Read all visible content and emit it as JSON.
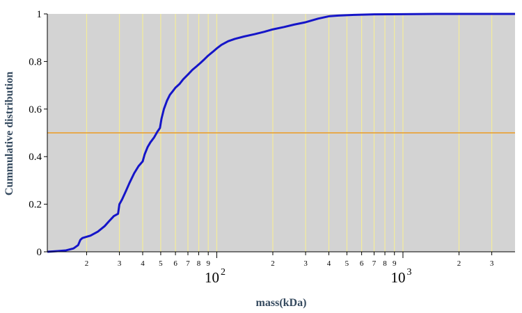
{
  "chart_data": {
    "type": "line",
    "title": "",
    "xlabel": "mass(kDa)",
    "ylabel": "Cummulative distribution",
    "x_scale": "log",
    "xlim": [
      12.3,
      4000
    ],
    "ylim": [
      0,
      1
    ],
    "grid": "vertical lines at log-axis tick positions",
    "colors": {
      "background": "#d3d3d3",
      "line": "#1515c8",
      "reference": "#e8a33a",
      "grid": "#f4ec9a"
    },
    "y_ticks": [
      "0",
      "0.2",
      "0.4",
      "0.6",
      "0.8",
      "1"
    ],
    "x_minor_ticks": [
      {
        "value": 20,
        "label": "2"
      },
      {
        "value": 30,
        "label": "3"
      },
      {
        "value": 40,
        "label": "4"
      },
      {
        "value": 50,
        "label": "5"
      },
      {
        "value": 60,
        "label": "6"
      },
      {
        "value": 70,
        "label": "7"
      },
      {
        "value": 80,
        "label": "8"
      },
      {
        "value": 90,
        "label": "9"
      },
      {
        "value": 200,
        "label": "2"
      },
      {
        "value": 300,
        "label": "3"
      },
      {
        "value": 400,
        "label": "4"
      },
      {
        "value": 500,
        "label": "5"
      },
      {
        "value": 600,
        "label": "6"
      },
      {
        "value": 700,
        "label": "7"
      },
      {
        "value": 800,
        "label": "8"
      },
      {
        "value": 900,
        "label": "9"
      },
      {
        "value": 2000,
        "label": "2"
      },
      {
        "value": 3000,
        "label": "3"
      }
    ],
    "x_major_ticks": [
      {
        "value": 100,
        "base": "10",
        "exp": "2"
      },
      {
        "value": 1000,
        "base": "10",
        "exp": "3"
      }
    ],
    "reference_line": {
      "y": 0.5
    },
    "series": [
      {
        "x": [
          12.3,
          14,
          15.5,
          17,
          18,
          18.5,
          19,
          21,
          23,
          25,
          26.5,
          28,
          29.5,
          30,
          31,
          32.5,
          34,
          36,
          38,
          40,
          41,
          42.5,
          44,
          46,
          48,
          49.5,
          50.5,
          52,
          54,
          56,
          58,
          60,
          63,
          66,
          70,
          74,
          78,
          82,
          86,
          90,
          95,
          100,
          106,
          115,
          125,
          140,
          160,
          180,
          200,
          230,
          260,
          300,
          350,
          400,
          450,
          550,
          700,
          1000,
          1500,
          2500,
          4000
        ],
        "y": [
          0.0,
          0.003,
          0.006,
          0.014,
          0.028,
          0.05,
          0.058,
          0.068,
          0.085,
          0.108,
          0.13,
          0.15,
          0.16,
          0.2,
          0.22,
          0.255,
          0.29,
          0.33,
          0.36,
          0.38,
          0.41,
          0.44,
          0.46,
          0.48,
          0.505,
          0.52,
          0.56,
          0.6,
          0.635,
          0.66,
          0.675,
          0.69,
          0.705,
          0.725,
          0.745,
          0.765,
          0.78,
          0.795,
          0.81,
          0.825,
          0.84,
          0.855,
          0.87,
          0.885,
          0.895,
          0.905,
          0.915,
          0.925,
          0.935,
          0.945,
          0.955,
          0.965,
          0.98,
          0.99,
          0.993,
          0.996,
          0.998,
          0.999,
          1.0,
          1.0,
          1.0
        ]
      }
    ]
  }
}
